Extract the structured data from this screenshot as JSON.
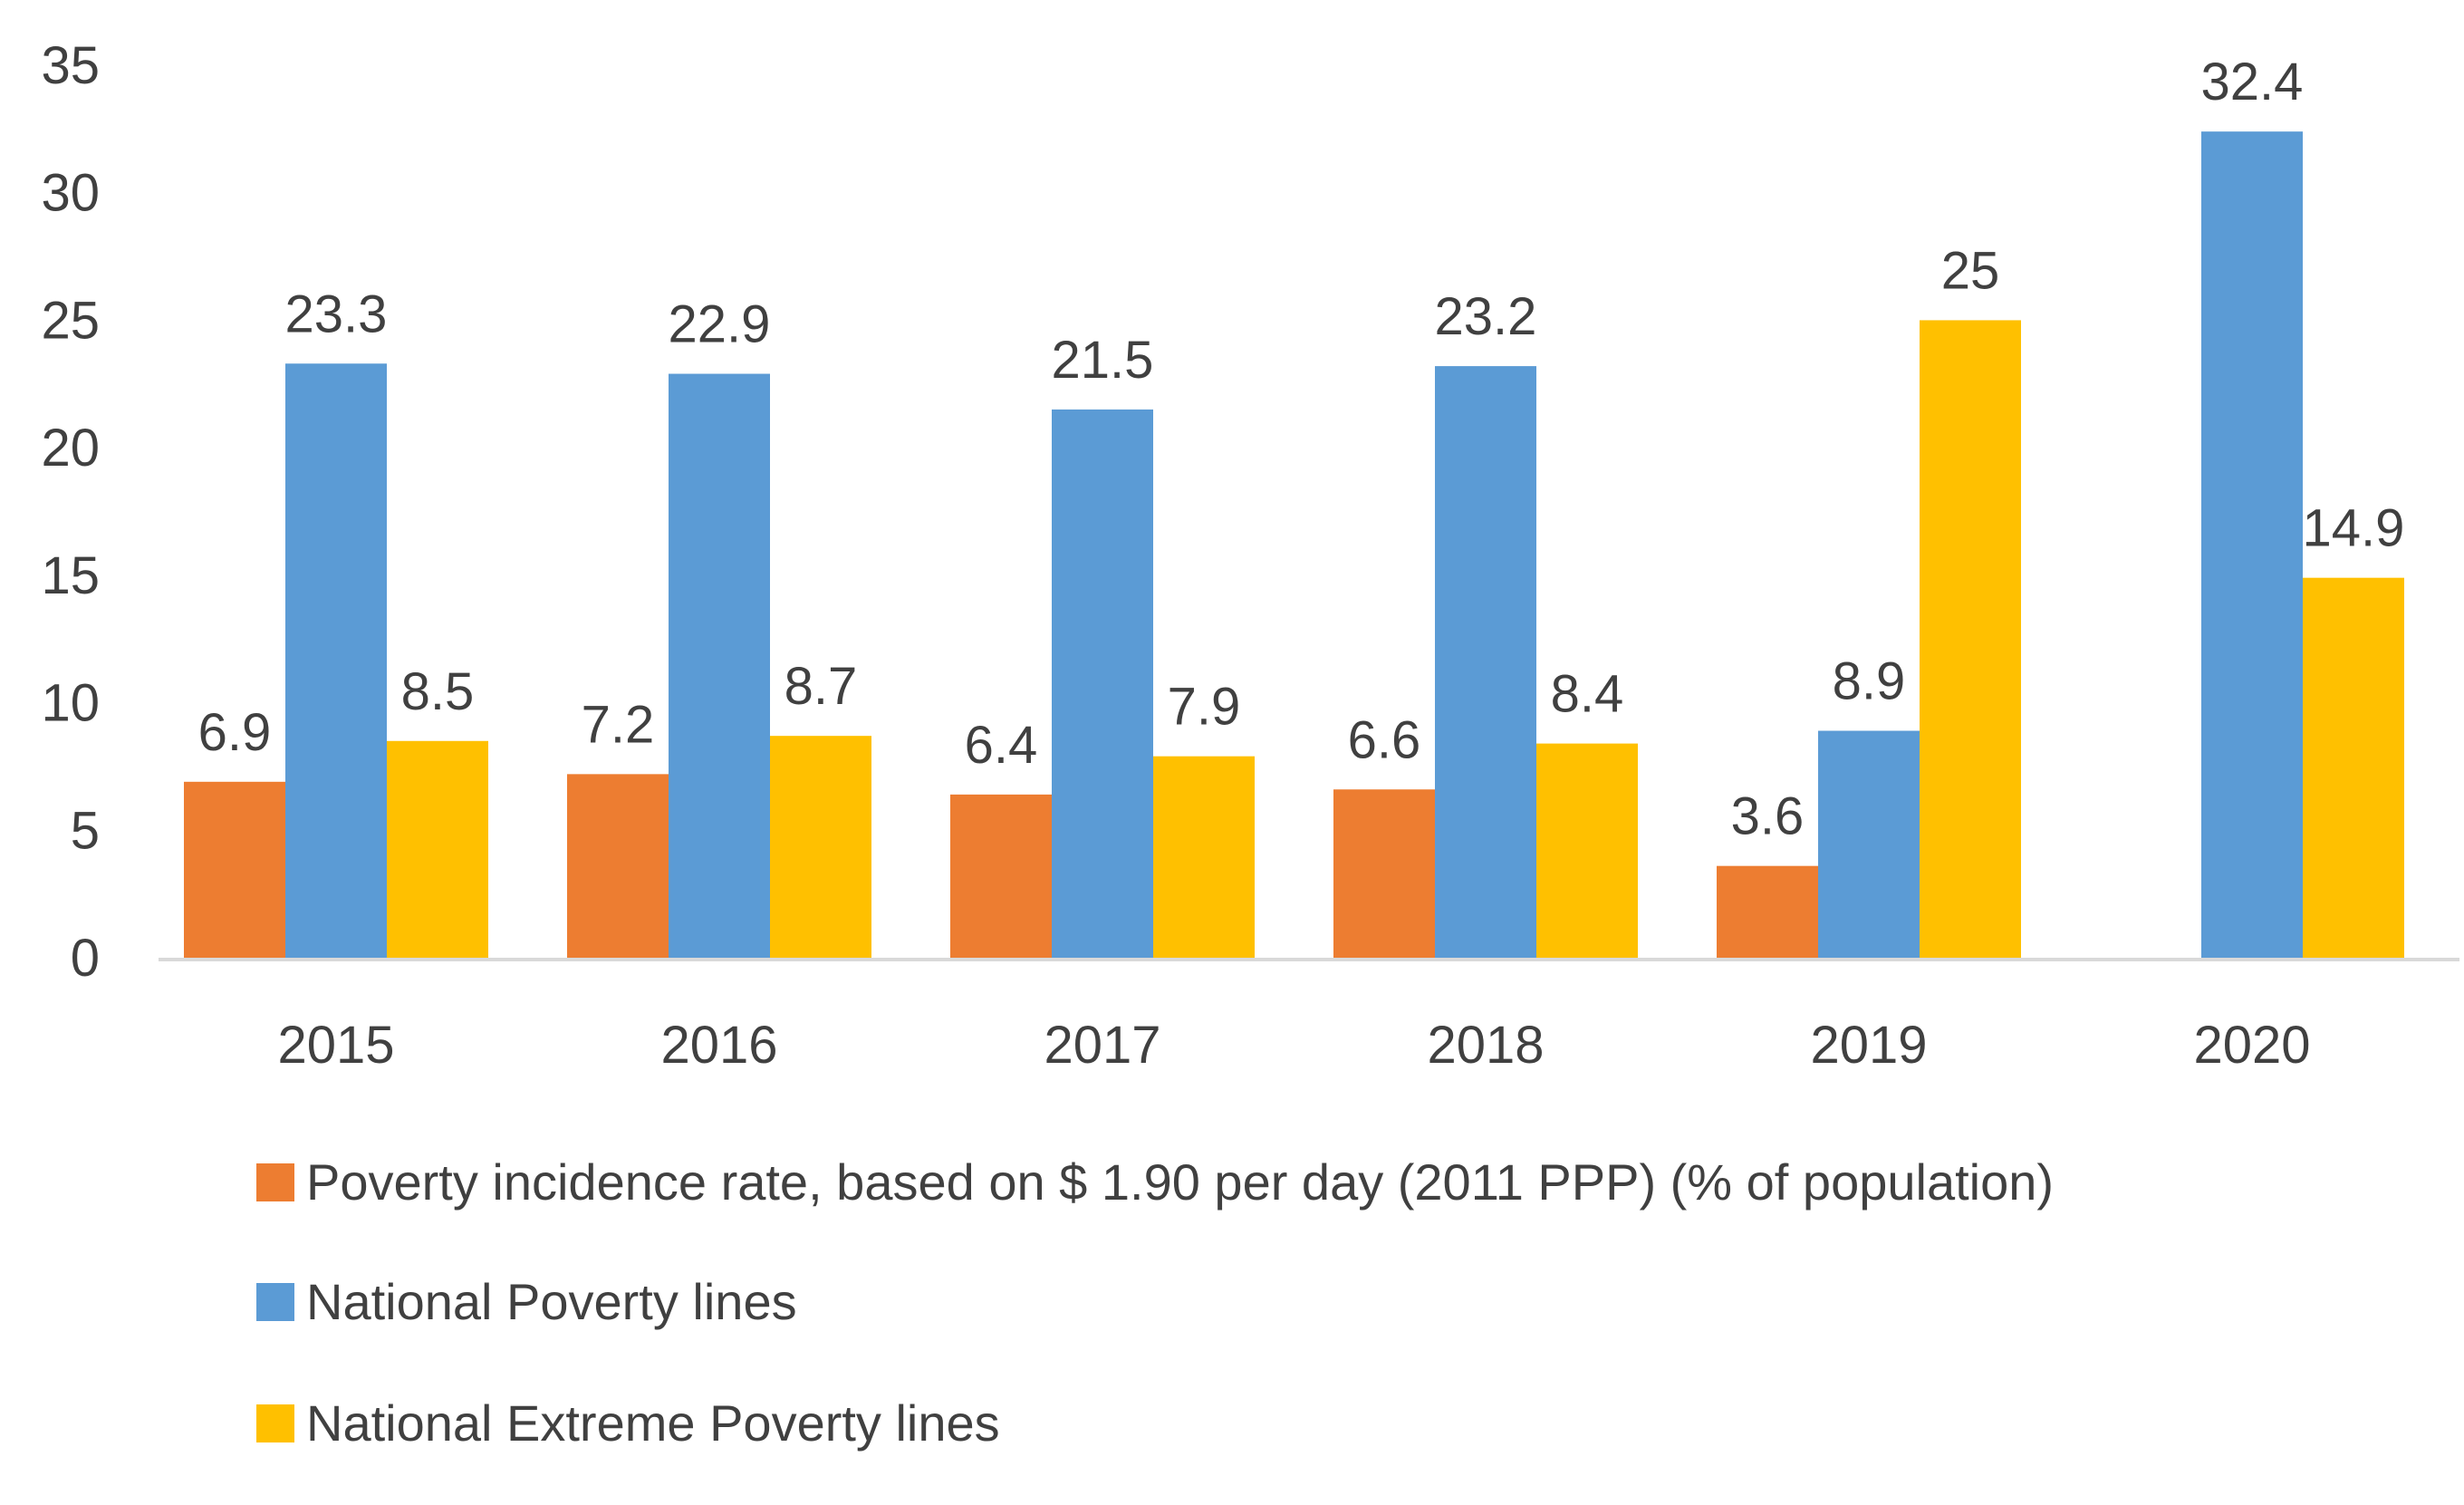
{
  "chart_data": {
    "type": "bar",
    "title": "",
    "xlabel": "",
    "ylabel": "",
    "ylim": [
      0,
      35
    ],
    "yticks": [
      0,
      5,
      10,
      15,
      20,
      25,
      30,
      35
    ],
    "grid": false,
    "legend": "bottom-left",
    "categories": [
      "2015",
      "2016",
      "2017",
      "2018",
      "2019",
      "2020"
    ],
    "series": [
      {
        "name": "Poverty incidence rate, based on $ 1.90 per day (2011 PPP) (% of population)",
        "color": "#ED7D31",
        "values": [
          6.9,
          7.2,
          6.4,
          6.6,
          3.6,
          null
        ],
        "labels": [
          "6.9",
          "7.2",
          "6.4",
          "6.6",
          "3.6",
          ""
        ]
      },
      {
        "name": "National Poverty lines",
        "color": "#5B9BD5",
        "values": [
          23.3,
          22.9,
          21.5,
          23.2,
          8.9,
          32.4
        ],
        "labels": [
          "23.3",
          "22.9",
          "21.5",
          "23.2",
          "8.9",
          "32.4"
        ]
      },
      {
        "name": "National Extreme Poverty lines",
        "color": "#FFC000",
        "values": [
          8.5,
          8.7,
          7.9,
          8.4,
          25,
          14.9
        ],
        "labels": [
          "8.5",
          "8.7",
          "7.9",
          "8.4",
          "25",
          "14.9"
        ]
      }
    ],
    "axis_color": "#D9D9D9"
  }
}
